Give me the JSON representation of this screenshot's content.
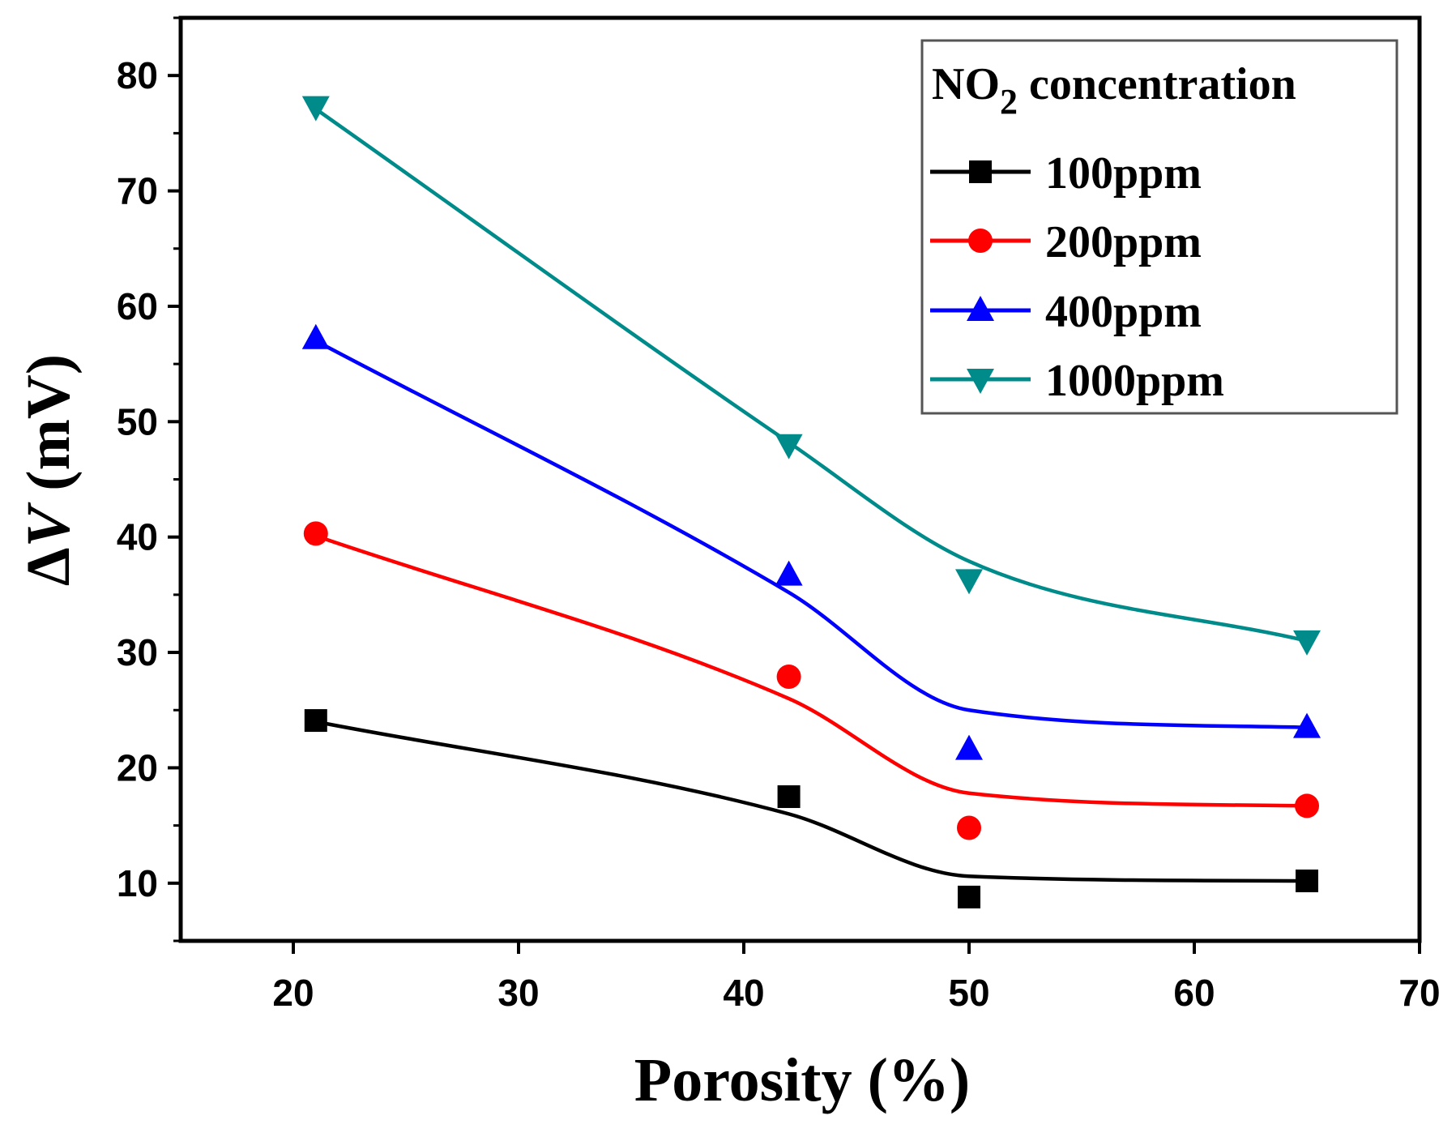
{
  "chart_data": {
    "type": "line",
    "xlabel": "Porosity (%)",
    "ylabel_prefix": "Δ",
    "ylabel_var": "V",
    "ylabel_suffix": " (mV)",
    "xlim": [
      15,
      70
    ],
    "ylim": [
      5,
      85
    ],
    "xticks": [
      20,
      30,
      40,
      50,
      60,
      70
    ],
    "yticks": [
      10,
      20,
      30,
      40,
      50,
      60,
      70,
      80
    ],
    "grid": false,
    "legend": {
      "placement": "top-right",
      "title_main": "NO",
      "title_sub": "2",
      "title_rest": " concentration"
    },
    "series": [
      {
        "name": "100ppm",
        "color": "#000000",
        "marker": "square",
        "x": [
          21,
          42,
          50,
          65
        ],
        "y": [
          24.1,
          17.5,
          8.8,
          10.2
        ],
        "fit_y": [
          24.0,
          16.0,
          10.6,
          10.2
        ]
      },
      {
        "name": "200ppm",
        "color": "#ff0000",
        "marker": "circle",
        "x": [
          21,
          42,
          50,
          65
        ],
        "y": [
          40.3,
          27.9,
          14.8,
          16.7
        ],
        "fit_y": [
          40.1,
          26.0,
          17.8,
          16.7
        ]
      },
      {
        "name": "400ppm",
        "color": "#0000ff",
        "marker": "triangle-up",
        "x": [
          21,
          42,
          50,
          65
        ],
        "y": [
          57.2,
          36.7,
          21.6,
          23.5
        ],
        "fit_y": [
          57.0,
          35.2,
          25.0,
          23.5
        ]
      },
      {
        "name": "1000ppm",
        "color": "#008b8b",
        "marker": "triangle-down",
        "x": [
          21,
          42,
          50,
          65
        ],
        "y": [
          77.3,
          48.0,
          36.3,
          31.0
        ],
        "fit_y": [
          77.1,
          48.2,
          37.9,
          31.0
        ]
      }
    ]
  }
}
